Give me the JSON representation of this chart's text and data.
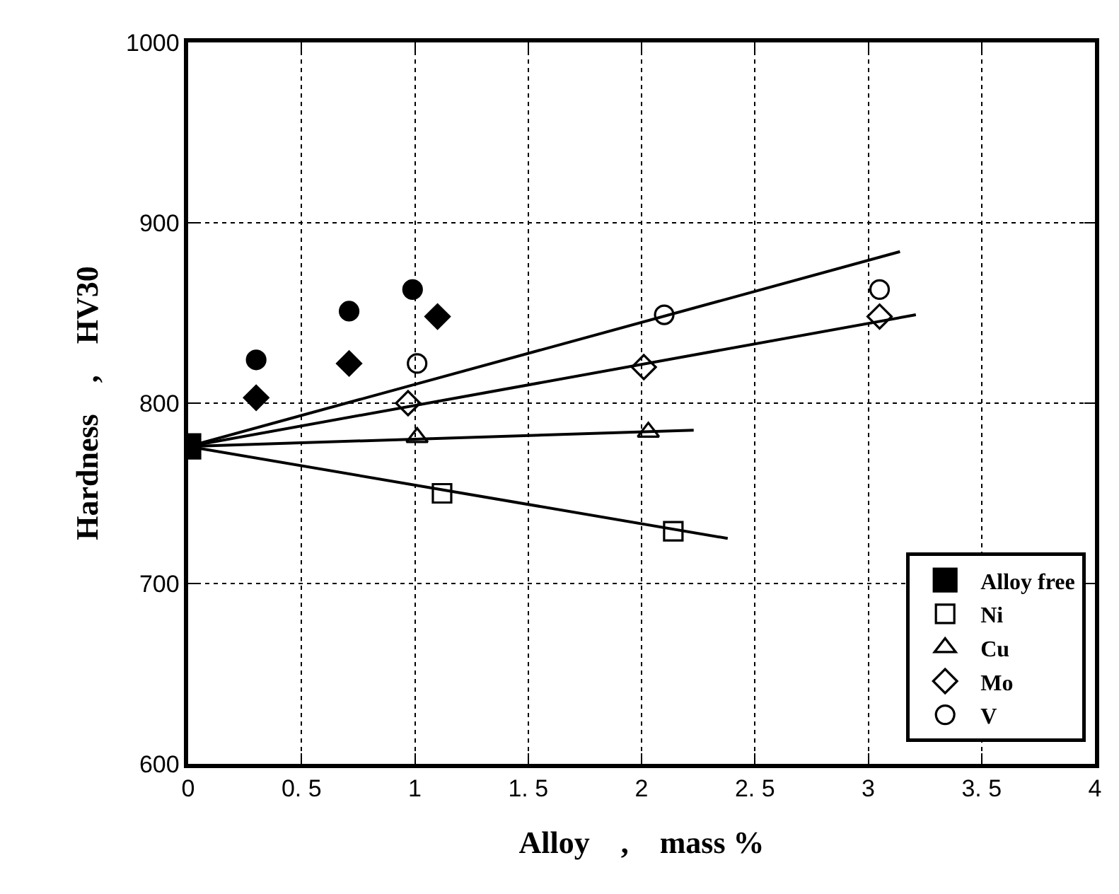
{
  "chart_data": {
    "type": "scatter",
    "xlabel": "Alloy　,　mass %",
    "ylabel": "Hardness　,　HV30",
    "xlim": [
      0,
      4
    ],
    "ylim": [
      600,
      1000
    ],
    "xticks": [
      0,
      {
        "value": 0.5,
        "label": "0. 5"
      },
      1,
      {
        "value": 1.5,
        "label": "1. 5"
      },
      2,
      {
        "value": 2.5,
        "label": "2. 5"
      },
      3,
      {
        "value": 3.5,
        "label": "3. 5"
      },
      4
    ],
    "yticks": [
      600,
      700,
      800,
      900,
      1000
    ],
    "grid": true,
    "legend": "bottom right",
    "series": [
      {
        "name": "Alloy free",
        "color": "#000000",
        "marker": "square",
        "x": [
          0
        ],
        "values": [
          776
        ]
      },
      {
        "name": "Ni",
        "color": "#000000",
        "marker": "square",
        "x": [
          1.12,
          2.14
        ],
        "values": [
          750,
          729
        ]
      },
      {
        "name": "Cu",
        "color": "#000000",
        "marker": "triangle",
        "x": [
          1.01,
          2.03
        ],
        "values": [
          781,
          784
        ]
      },
      {
        "name": "Mo",
        "color": "#000000",
        "marker": "diamond",
        "x": [
          0.97,
          2.01,
          3.05
        ],
        "values": [
          800,
          820,
          848
        ]
      },
      {
        "name": "V",
        "color": "#000000",
        "marker": "circle",
        "x": [
          1.01,
          2.1,
          3.05
        ],
        "values": [
          822,
          849,
          863
        ]
      },
      {
        "color": "#000000",
        "marker": "circle",
        "x": [
          0.3,
          0.71,
          0.99
        ],
        "values": [
          824,
          851,
          863
        ]
      },
      {
        "color": "#000000",
        "marker": "diamond",
        "x": [
          0.3,
          0.71,
          1.1
        ],
        "values": [
          803,
          822,
          848
        ]
      },
      {
        "type": "line",
        "color": "#000000",
        "marker": "none",
        "x": [
          0,
          2.38
        ],
        "values": [
          776,
          725
        ]
      },
      {
        "type": "line",
        "color": "#000000",
        "marker": "none",
        "x": [
          0,
          2.23
        ],
        "values": [
          776,
          785
        ]
      },
      {
        "type": "line",
        "color": "#000000",
        "marker": "none",
        "x": [
          0,
          3.21
        ],
        "values": [
          776,
          849
        ]
      },
      {
        "type": "line",
        "color": "#000000",
        "marker": "none",
        "x": [
          0,
          3.14
        ],
        "values": [
          776,
          884
        ]
      }
    ]
  }
}
